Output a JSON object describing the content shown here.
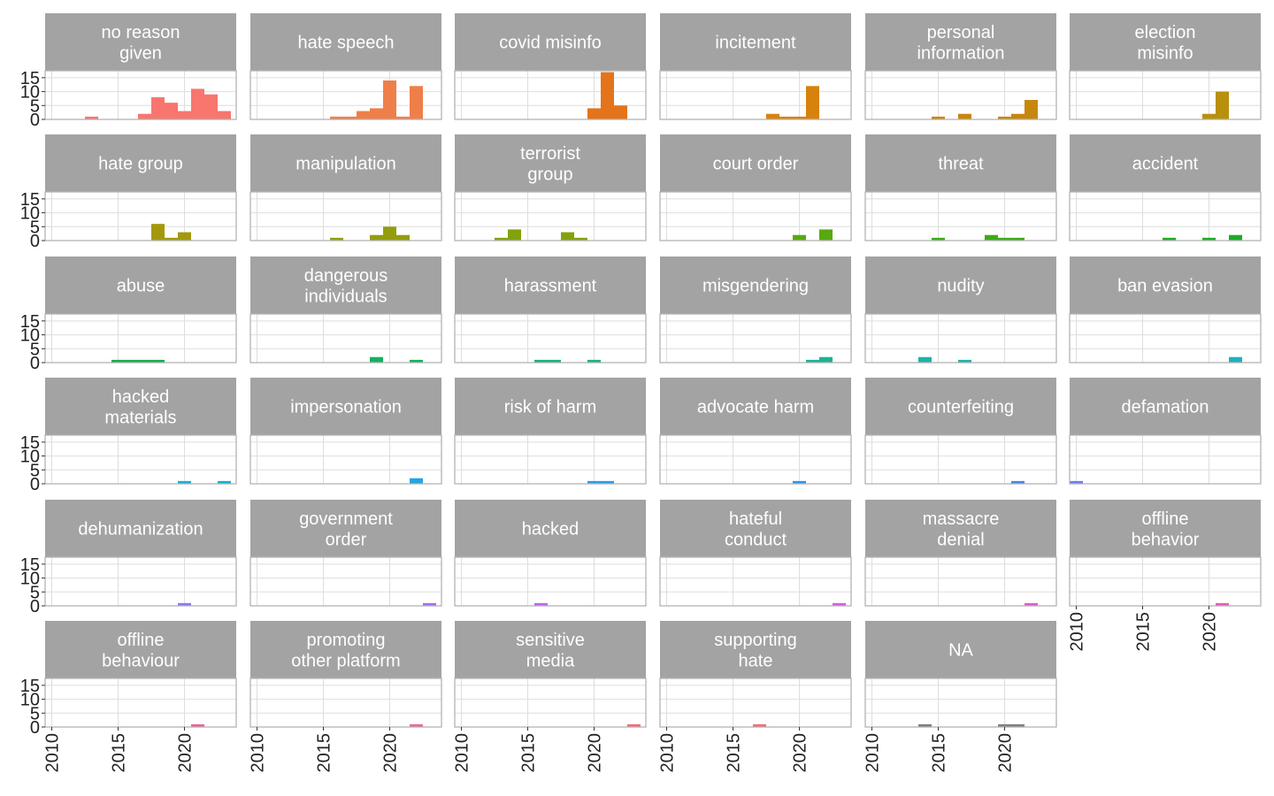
{
  "chart_data": {
    "type": "bar",
    "layout": "facet-grid",
    "facet_columns": 6,
    "x_ticks": [
      2010,
      2015,
      2020
    ],
    "y_ticks": [
      0,
      5,
      10,
      15
    ],
    "xlim": [
      2009.5,
      2023.9
    ],
    "ylim": [
      0,
      17.5
    ],
    "bin_width": 1,
    "grid": true,
    "legend": "none",
    "facets": [
      {
        "title": [
          "no reason",
          "given"
        ],
        "color": "#F8766D",
        "bars": [
          [
            2013,
            1
          ],
          [
            2017,
            2
          ],
          [
            2018,
            8
          ],
          [
            2019,
            6
          ],
          [
            2020,
            3
          ],
          [
            2021,
            11
          ],
          [
            2022,
            9
          ],
          [
            2023,
            3
          ]
        ]
      },
      {
        "title": [
          "hate speech"
        ],
        "color": "#EF7F49",
        "bars": [
          [
            2016,
            1
          ],
          [
            2017,
            1
          ],
          [
            2018,
            3
          ],
          [
            2019,
            4
          ],
          [
            2020,
            14
          ],
          [
            2021,
            1
          ],
          [
            2022,
            12
          ]
        ]
      },
      {
        "title": [
          "covid misinfo"
        ],
        "color": "#E3741B",
        "bars": [
          [
            2020,
            4
          ],
          [
            2021,
            17
          ],
          [
            2022,
            5
          ]
        ]
      },
      {
        "title": [
          "incitement"
        ],
        "color": "#D7820C",
        "bars": [
          [
            2018,
            2
          ],
          [
            2019,
            1
          ],
          [
            2020,
            1
          ],
          [
            2021,
            12
          ]
        ]
      },
      {
        "title": [
          "personal",
          "information"
        ],
        "color": "#C8860C",
        "bars": [
          [
            2015,
            1
          ],
          [
            2017,
            2
          ],
          [
            2020,
            1
          ],
          [
            2021,
            2
          ],
          [
            2022,
            7
          ]
        ]
      },
      {
        "title": [
          "election",
          "misinfo"
        ],
        "color": "#B8900C",
        "bars": [
          [
            2020,
            2
          ],
          [
            2021,
            10
          ]
        ]
      },
      {
        "title": [
          "hate group"
        ],
        "color": "#A3980C",
        "bars": [
          [
            2018,
            6
          ],
          [
            2019,
            1
          ],
          [
            2020,
            3
          ]
        ]
      },
      {
        "title": [
          "manipulation"
        ],
        "color": "#939D0C",
        "bars": [
          [
            2016,
            1
          ],
          [
            2019,
            2
          ],
          [
            2020,
            5
          ],
          [
            2021,
            2
          ]
        ]
      },
      {
        "title": [
          "terrorist",
          "group"
        ],
        "color": "#82A20C",
        "bars": [
          [
            2013,
            1
          ],
          [
            2014,
            4
          ],
          [
            2018,
            3
          ],
          [
            2019,
            1
          ]
        ]
      },
      {
        "title": [
          "court order"
        ],
        "color": "#58A80F",
        "bars": [
          [
            2020,
            2
          ],
          [
            2022,
            4
          ]
        ]
      },
      {
        "title": [
          "threat"
        ],
        "color": "#3DAA17",
        "bars": [
          [
            2015,
            1
          ],
          [
            2019,
            2
          ],
          [
            2020,
            1
          ],
          [
            2021,
            1
          ]
        ]
      },
      {
        "title": [
          "accident"
        ],
        "color": "#1CAB24",
        "bars": [
          [
            2017,
            1
          ],
          [
            2020,
            1
          ],
          [
            2022,
            2
          ]
        ]
      },
      {
        "title": [
          "abuse"
        ],
        "color": "#13AE4A",
        "bars": [
          [
            2015,
            1
          ],
          [
            2016,
            1
          ],
          [
            2017,
            1
          ],
          [
            2018,
            1
          ]
        ]
      },
      {
        "title": [
          "dangerous",
          "individuals"
        ],
        "color": "#13B062",
        "bars": [
          [
            2019,
            2
          ],
          [
            2022,
            1
          ]
        ]
      },
      {
        "title": [
          "harassment"
        ],
        "color": "#18B27D",
        "bars": [
          [
            2016,
            1
          ],
          [
            2017,
            1
          ],
          [
            2020,
            1
          ]
        ]
      },
      {
        "title": [
          "misgendering"
        ],
        "color": "#19B395",
        "bars": [
          [
            2021,
            1
          ],
          [
            2022,
            2
          ]
        ]
      },
      {
        "title": [
          "nudity"
        ],
        "color": "#1BB3A8",
        "bars": [
          [
            2014,
            2
          ],
          [
            2017,
            1
          ]
        ]
      },
      {
        "title": [
          "ban evasion"
        ],
        "color": "#1CB2BC",
        "bars": [
          [
            2022,
            2
          ]
        ]
      },
      {
        "title": [
          "hacked",
          "materials"
        ],
        "color": "#1EADCF",
        "bars": [
          [
            2020,
            1
          ],
          [
            2023,
            1
          ]
        ]
      },
      {
        "title": [
          "impersonation"
        ],
        "color": "#22A6DE",
        "bars": [
          [
            2022,
            2
          ]
        ]
      },
      {
        "title": [
          "risk of harm"
        ],
        "color": "#2A9DE6",
        "bars": [
          [
            2020,
            1
          ],
          [
            2021,
            1
          ]
        ]
      },
      {
        "title": [
          "advocate harm"
        ],
        "color": "#3292EA",
        "bars": [
          [
            2020,
            1
          ]
        ]
      },
      {
        "title": [
          "counterfeiting"
        ],
        "color": "#4886EC",
        "bars": [
          [
            2021,
            1
          ]
        ]
      },
      {
        "title": [
          "defamation"
        ],
        "color": "#6C7EEE",
        "bars": [
          [
            2010,
            1
          ]
        ]
      },
      {
        "title": [
          "dehumanization"
        ],
        "color": "#8D77F0",
        "bars": [
          [
            2020,
            1
          ]
        ]
      },
      {
        "title": [
          "government",
          "order"
        ],
        "color": "#AA6DF2",
        "bars": [
          [
            2023,
            1
          ]
        ]
      },
      {
        "title": [
          "hacked"
        ],
        "color": "#C264EE",
        "bars": [
          [
            2016,
            1
          ]
        ]
      },
      {
        "title": [
          "hateful",
          "conduct"
        ],
        "color": "#D55DE3",
        "bars": [
          [
            2023,
            1
          ]
        ]
      },
      {
        "title": [
          "massacre",
          "denial"
        ],
        "color": "#E15ACE",
        "bars": [
          [
            2022,
            1
          ]
        ]
      },
      {
        "title": [
          "offline",
          "behavior"
        ],
        "color": "#EA5CB8",
        "bars": [
          [
            2021,
            1
          ]
        ]
      },
      {
        "title": [
          "offline",
          "behaviour"
        ],
        "color": "#F0609F",
        "bars": [
          [
            2021,
            1
          ]
        ]
      },
      {
        "title": [
          "promoting",
          "other platform"
        ],
        "color": "#F4658A",
        "bars": [
          [
            2022,
            1
          ]
        ]
      },
      {
        "title": [
          "sensitive",
          "media"
        ],
        "color": "#F76A78",
        "bars": [
          [
            2023,
            1
          ]
        ]
      },
      {
        "title": [
          "supporting",
          "hate"
        ],
        "color": "#F86E6E",
        "bars": [
          [
            2017,
            1
          ]
        ]
      },
      {
        "title": [
          "NA"
        ],
        "color": "#7F7F7F",
        "bars": [
          [
            2014,
            1
          ],
          [
            2020,
            1
          ],
          [
            2021,
            1
          ]
        ]
      }
    ]
  }
}
